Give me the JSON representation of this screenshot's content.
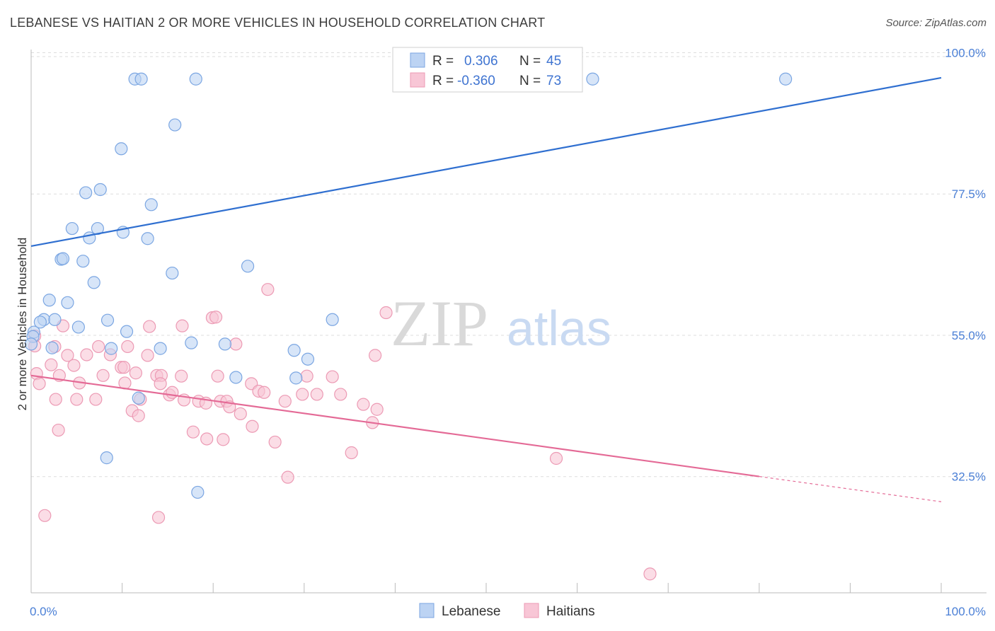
{
  "title": "LEBANESE VS HAITIAN 2 OR MORE VEHICLES IN HOUSEHOLD CORRELATION CHART",
  "source": "Source: ZipAtlas.com",
  "watermark": {
    "zip": "ZIP",
    "atlas": "atlas"
  },
  "colors": {
    "lebanese_fill": "#bcd3f3",
    "lebanese_stroke": "#7ba6e2",
    "lebanese_line": "#2f6fd0",
    "haitian_fill": "#f8c6d6",
    "haitian_stroke": "#ec9ab4",
    "haitian_line": "#e46a96",
    "tick_text": "#4a7fd6",
    "grid": "#dddddd"
  },
  "legend": {
    "rows": [
      {
        "r_label": "R =",
        "r_value": "0.306",
        "n_label": "N =",
        "n_value": "45"
      },
      {
        "r_label": "R =",
        "r_value": "-0.360",
        "n_label": "N =",
        "n_value": "73"
      }
    ]
  },
  "bottom_legend": {
    "items": [
      "Lebanese",
      "Haitians"
    ]
  },
  "chart_data": {
    "type": "scatter",
    "xlabel": "",
    "ylabel": "2 or more Vehicles in Household",
    "xlim": [
      0,
      100
    ],
    "ylim": [
      14,
      100.5
    ],
    "x_tick_labels": [
      "0.0%",
      "100.0%"
    ],
    "y_ticks": [
      32.5,
      55.0,
      77.5,
      100.0
    ],
    "y_tick_labels": [
      "32.5%",
      "55.0%",
      "77.5%",
      "100.0%"
    ],
    "grid": "horizontal dashed",
    "series": [
      {
        "name": "Lebanese",
        "trend": {
          "x0": 0,
          "y0": 69.2,
          "x1": 100,
          "y1": 96.0,
          "dashed_from": null
        },
        "points": [
          [
            11.4,
            95.8
          ],
          [
            12.1,
            95.8
          ],
          [
            18.1,
            95.8
          ],
          [
            61.7,
            95.8
          ],
          [
            82.9,
            95.8
          ],
          [
            15.8,
            88.5
          ],
          [
            9.9,
            84.7
          ],
          [
            6.0,
            77.7
          ],
          [
            7.6,
            78.2
          ],
          [
            13.2,
            75.8
          ],
          [
            4.5,
            72.0
          ],
          [
            7.3,
            72.0
          ],
          [
            10.1,
            71.4
          ],
          [
            6.4,
            70.5
          ],
          [
            12.8,
            70.4
          ],
          [
            3.3,
            67.1
          ],
          [
            3.5,
            67.2
          ],
          [
            5.7,
            66.8
          ],
          [
            23.8,
            66.0
          ],
          [
            15.5,
            64.9
          ],
          [
            6.9,
            63.4
          ],
          [
            2.0,
            60.6
          ],
          [
            4.0,
            60.2
          ],
          [
            1.4,
            57.5
          ],
          [
            2.6,
            57.5
          ],
          [
            1.0,
            57.1
          ],
          [
            8.4,
            57.4
          ],
          [
            33.1,
            57.5
          ],
          [
            5.2,
            56.3
          ],
          [
            10.5,
            55.6
          ],
          [
            0.3,
            55.5
          ],
          [
            0.2,
            54.8
          ],
          [
            17.6,
            53.8
          ],
          [
            21.3,
            53.6
          ],
          [
            2.3,
            53.0
          ],
          [
            8.8,
            52.9
          ],
          [
            14.2,
            52.9
          ],
          [
            28.9,
            52.6
          ],
          [
            30.4,
            51.2
          ],
          [
            29.1,
            48.2
          ],
          [
            22.5,
            48.3
          ],
          [
            11.8,
            45.0
          ],
          [
            8.3,
            35.5
          ],
          [
            18.3,
            30.0
          ],
          [
            0.0,
            53.6
          ]
        ]
      },
      {
        "name": "Haitians",
        "trend": {
          "x0": 0,
          "y0": 48.6,
          "x1": 100,
          "y1": 28.5,
          "dashed_from": 80
        },
        "points": [
          [
            26.0,
            62.3
          ],
          [
            39.0,
            58.6
          ],
          [
            19.9,
            57.8
          ],
          [
            20.3,
            57.9
          ],
          [
            3.5,
            56.5
          ],
          [
            13.0,
            56.4
          ],
          [
            16.6,
            56.5
          ],
          [
            7.4,
            53.2
          ],
          [
            10.6,
            53.2
          ],
          [
            2.6,
            53.2
          ],
          [
            22.5,
            53.6
          ],
          [
            0.4,
            53.3
          ],
          [
            4.0,
            51.8
          ],
          [
            6.1,
            51.9
          ],
          [
            8.7,
            51.9
          ],
          [
            12.8,
            51.8
          ],
          [
            37.8,
            51.8
          ],
          [
            2.2,
            50.3
          ],
          [
            4.7,
            50.2
          ],
          [
            9.9,
            49.9
          ],
          [
            10.2,
            49.9
          ],
          [
            0.6,
            48.9
          ],
          [
            3.1,
            48.6
          ],
          [
            7.9,
            48.6
          ],
          [
            11.5,
            49.0
          ],
          [
            13.8,
            48.6
          ],
          [
            14.3,
            48.6
          ],
          [
            16.5,
            48.5
          ],
          [
            30.3,
            48.5
          ],
          [
            33.1,
            48.4
          ],
          [
            20.5,
            48.5
          ],
          [
            0.9,
            47.3
          ],
          [
            5.3,
            47.4
          ],
          [
            10.3,
            47.4
          ],
          [
            14.2,
            47.3
          ],
          [
            24.2,
            47.3
          ],
          [
            25.0,
            46.1
          ],
          [
            25.6,
            45.9
          ],
          [
            29.8,
            45.6
          ],
          [
            31.4,
            45.6
          ],
          [
            34.0,
            45.6
          ],
          [
            15.2,
            45.5
          ],
          [
            15.5,
            45.9
          ],
          [
            2.7,
            44.8
          ],
          [
            5.0,
            44.8
          ],
          [
            7.1,
            44.8
          ],
          [
            12.0,
            44.8
          ],
          [
            16.8,
            44.7
          ],
          [
            20.8,
            44.5
          ],
          [
            21.5,
            44.5
          ],
          [
            18.4,
            44.5
          ],
          [
            19.2,
            44.2
          ],
          [
            21.8,
            43.6
          ],
          [
            27.9,
            44.5
          ],
          [
            36.5,
            44.0
          ],
          [
            38.0,
            43.2
          ],
          [
            11.1,
            43.0
          ],
          [
            11.8,
            42.2
          ],
          [
            23.0,
            42.5
          ],
          [
            37.5,
            41.1
          ],
          [
            24.3,
            40.5
          ],
          [
            3.0,
            39.9
          ],
          [
            17.8,
            39.6
          ],
          [
            19.3,
            38.5
          ],
          [
            21.1,
            38.4
          ],
          [
            26.8,
            38.0
          ],
          [
            35.2,
            36.3
          ],
          [
            57.7,
            35.4
          ],
          [
            28.2,
            32.4
          ],
          [
            1.5,
            26.3
          ],
          [
            14.0,
            26.0
          ],
          [
            68.0,
            17.0
          ],
          [
            0.4,
            54.9
          ]
        ]
      }
    ]
  }
}
